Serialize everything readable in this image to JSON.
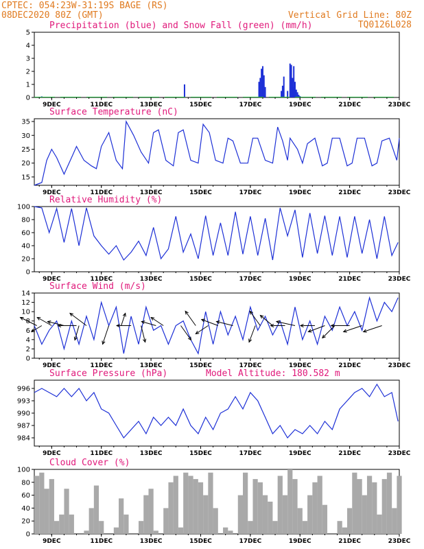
{
  "header": {
    "station": "CPTEC:   054:23W-31:19S   BAGE (RS)",
    "date": "08DEC2020 80Z (GMT)",
    "grid": "Vertical Grid Line: 80Z",
    "code": "TQ0126L028"
  },
  "colors": {
    "header": "#e07a1f",
    "title": "#e0187a",
    "line": "#1c2fd6",
    "precip": "#1c2fd6",
    "snow": "#1fae3a",
    "cloud": "#a9a9a9",
    "arrow": "#000000"
  },
  "chart_data": [
    {
      "type": "bar",
      "title": "Precipitation (blue) and Snow Fall (green) (mm/h)",
      "x_ticks": [
        "9DEC",
        "11DEC",
        "13DEC",
        "15DEC",
        "17DEC",
        "19DEC",
        "21DEC",
        "23DEC"
      ],
      "x_range_days": [
        8.3,
        23.0
      ],
      "ylim": [
        0,
        5
      ],
      "y_ticks": [
        0,
        1,
        2,
        3,
        4,
        5
      ],
      "series": [
        {
          "name": "Precipitation",
          "points": [
            [
              8.6,
              0.08
            ],
            [
              14.35,
              1.0
            ],
            [
              17.35,
              1.2
            ],
            [
              17.4,
              1.5
            ],
            [
              17.45,
              2.2
            ],
            [
              17.5,
              2.4
            ],
            [
              17.55,
              1.7
            ],
            [
              17.6,
              0.8
            ],
            [
              18.25,
              0.5
            ],
            [
              18.3,
              0.9
            ],
            [
              18.35,
              1.6
            ],
            [
              18.5,
              0.5
            ],
            [
              18.6,
              2.6
            ],
            [
              18.65,
              2.5
            ],
            [
              18.7,
              1.5
            ],
            [
              18.72,
              0.8
            ],
            [
              18.75,
              2.4
            ],
            [
              18.8,
              1.2
            ],
            [
              18.85,
              0.6
            ],
            [
              18.9,
              0.4
            ],
            [
              18.95,
              0.2
            ],
            [
              19.0,
              0.1
            ]
          ]
        },
        {
          "name": "Snow Fall",
          "points": [
            [
              10.0,
              0.03
            ],
            [
              12.0,
              0.03
            ],
            [
              14.0,
              0.03
            ],
            [
              16.0,
              0.05
            ],
            [
              20.0,
              0.03
            ],
            [
              22.0,
              0.04
            ]
          ]
        }
      ]
    },
    {
      "type": "line",
      "title": "Surface Temperature (nC)",
      "ylim": [
        12,
        36
      ],
      "y_ticks": [
        15,
        20,
        25,
        30,
        35
      ],
      "x_ticks": [
        "9DEC",
        "11DEC",
        "13DEC",
        "15DEC",
        "17DEC",
        "19DEC",
        "21DEC",
        "23DEC"
      ],
      "x": [
        8.3,
        8.6,
        8.8,
        9.0,
        9.2,
        9.5,
        9.8,
        10.0,
        10.3,
        10.6,
        10.8,
        11.0,
        11.3,
        11.6,
        11.85,
        12.0,
        12.3,
        12.6,
        12.9,
        13.1,
        13.3,
        13.6,
        13.9,
        14.1,
        14.3,
        14.6,
        14.9,
        15.1,
        15.35,
        15.6,
        15.9,
        16.1,
        16.3,
        16.6,
        16.9,
        17.1,
        17.3,
        17.6,
        17.9,
        18.1,
        18.3,
        18.5,
        18.6,
        18.9,
        19.1,
        19.3,
        19.6,
        19.9,
        20.1,
        20.3,
        20.6,
        20.9,
        21.1,
        21.3,
        21.6,
        21.9,
        22.1,
        22.3,
        22.6,
        22.9,
        23.0
      ],
      "values": [
        12,
        13,
        21,
        25,
        22,
        16,
        22,
        26,
        21,
        19,
        18,
        26,
        31,
        21,
        18,
        35,
        30,
        24,
        20,
        31,
        32,
        21,
        19,
        31,
        32,
        21,
        20,
        34,
        31,
        21,
        20,
        29,
        28,
        20,
        20,
        29,
        29,
        21,
        20,
        33,
        28,
        21,
        29,
        25,
        20,
        27,
        29,
        19,
        20,
        29,
        29,
        19,
        20,
        29,
        29,
        19,
        20,
        28,
        29,
        21,
        29
      ]
    },
    {
      "type": "line",
      "title": "Relative Humidity (%)",
      "ylim": [
        0,
        100
      ],
      "y_ticks": [
        0,
        20,
        40,
        60,
        80,
        100
      ],
      "x_ticks": [
        "9DEC",
        "11DEC",
        "13DEC",
        "15DEC",
        "17DEC",
        "19DEC",
        "21DEC",
        "23DEC"
      ],
      "x": [
        8.3,
        8.6,
        8.9,
        9.2,
        9.5,
        9.8,
        10.1,
        10.4,
        10.7,
        11.0,
        11.3,
        11.6,
        11.9,
        12.2,
        12.5,
        12.8,
        13.1,
        13.4,
        13.7,
        14.0,
        14.3,
        14.6,
        14.9,
        15.2,
        15.5,
        15.8,
        16.1,
        16.4,
        16.7,
        17.0,
        17.3,
        17.6,
        17.9,
        18.2,
        18.5,
        18.8,
        19.1,
        19.4,
        19.7,
        20.0,
        20.3,
        20.6,
        20.9,
        21.2,
        21.5,
        21.8,
        22.1,
        22.4,
        22.7,
        22.95
      ],
      "values": [
        100,
        98,
        60,
        97,
        45,
        97,
        40,
        98,
        55,
        40,
        27,
        40,
        18,
        30,
        47,
        25,
        68,
        20,
        35,
        85,
        30,
        58,
        20,
        86,
        25,
        75,
        25,
        92,
        27,
        85,
        25,
        82,
        18,
        98,
        55,
        95,
        22,
        90,
        28,
        86,
        25,
        85,
        22,
        85,
        28,
        80,
        20,
        85,
        25,
        45
      ]
    },
    {
      "type": "line",
      "title": "Surface Wind (m/s)",
      "ylim": [
        0,
        14
      ],
      "y_ticks": [
        0,
        2,
        4,
        6,
        8,
        10,
        12,
        14
      ],
      "x_ticks": [
        "9DEC",
        "11DEC",
        "13DEC",
        "15DEC",
        "17DEC",
        "19DEC",
        "21DEC",
        "23DEC"
      ],
      "x": [
        8.3,
        8.6,
        8.9,
        9.2,
        9.5,
        9.8,
        10.1,
        10.4,
        10.7,
        11.0,
        11.3,
        11.6,
        11.9,
        12.2,
        12.5,
        12.8,
        13.1,
        13.4,
        13.7,
        14.0,
        14.3,
        14.6,
        14.9,
        15.2,
        15.5,
        15.8,
        16.1,
        16.4,
        16.7,
        17.0,
        17.3,
        17.6,
        17.9,
        18.2,
        18.5,
        18.8,
        19.1,
        19.4,
        19.7,
        20.0,
        20.3,
        20.6,
        20.9,
        21.2,
        21.5,
        21.8,
        22.1,
        22.4,
        22.7,
        22.95
      ],
      "values": [
        7,
        3,
        6,
        8,
        2,
        8,
        3,
        9,
        4,
        12,
        7,
        11,
        1,
        9,
        3,
        11,
        6,
        7,
        3,
        7,
        8,
        4,
        1,
        10,
        3,
        10,
        5,
        9,
        4,
        11,
        6,
        9,
        5,
        8,
        3,
        11,
        4,
        8,
        3,
        9,
        6,
        11,
        7,
        10,
        6,
        13,
        8,
        12,
        10,
        13
      ]
    },
    {
      "type": "line",
      "title": "Surface Pressure (hPa)",
      "annotation": "Model Altitude: 180.582 m",
      "ylim": [
        982,
        998
      ],
      "y_ticks": [
        984,
        987,
        990,
        993,
        996
      ],
      "x_ticks": [
        "9DEC",
        "11DEC",
        "13DEC",
        "15DEC",
        "17DEC",
        "19DEC",
        "21DEC",
        "23DEC"
      ],
      "x": [
        8.3,
        8.6,
        8.9,
        9.2,
        9.5,
        9.8,
        10.1,
        10.4,
        10.7,
        11.0,
        11.3,
        11.6,
        11.9,
        12.2,
        12.5,
        12.8,
        13.1,
        13.4,
        13.7,
        14.0,
        14.3,
        14.6,
        14.9,
        15.2,
        15.5,
        15.8,
        16.1,
        16.4,
        16.7,
        17.0,
        17.3,
        17.6,
        17.9,
        18.2,
        18.5,
        18.8,
        19.1,
        19.4,
        19.7,
        20.0,
        20.3,
        20.6,
        20.9,
        21.2,
        21.5,
        21.8,
        22.1,
        22.4,
        22.7,
        22.95
      ],
      "values": [
        995,
        996,
        995,
        994,
        996,
        994,
        996,
        993,
        995,
        991,
        990,
        987,
        984,
        986,
        988,
        985,
        989,
        987,
        989,
        987,
        991,
        987,
        985,
        989,
        986,
        990,
        991,
        994,
        991,
        995,
        993,
        989,
        985,
        987,
        984,
        986,
        985,
        987,
        985,
        988,
        986,
        991,
        993,
        995,
        996,
        994,
        997,
        994,
        995,
        988
      ]
    },
    {
      "type": "area",
      "title": "Cloud Cover (%)",
      "ylim": [
        0,
        100
      ],
      "y_ticks": [
        0,
        20,
        40,
        60,
        80,
        100
      ],
      "x_ticks": [
        "9DEC",
        "11DEC",
        "13DEC",
        "15DEC",
        "17DEC",
        "19DEC",
        "21DEC",
        "23DEC"
      ],
      "x": [
        8.3,
        8.5,
        8.7,
        8.9,
        9.1,
        9.3,
        9.5,
        9.7,
        9.9,
        10.1,
        10.3,
        10.5,
        10.7,
        10.9,
        11.1,
        11.3,
        11.5,
        11.7,
        11.9,
        12.1,
        12.3,
        12.5,
        12.7,
        12.9,
        13.1,
        13.3,
        13.5,
        13.7,
        13.9,
        14.1,
        14.3,
        14.5,
        14.7,
        14.9,
        15.1,
        15.3,
        15.5,
        15.7,
        15.9,
        16.1,
        16.3,
        16.5,
        16.7,
        16.9,
        17.1,
        17.3,
        17.5,
        17.7,
        17.9,
        18.1,
        18.3,
        18.5,
        18.7,
        18.9,
        19.1,
        19.3,
        19.5,
        19.7,
        19.9,
        20.1,
        20.3,
        20.5,
        20.7,
        20.9,
        21.1,
        21.3,
        21.5,
        21.7,
        21.9,
        22.1,
        22.3,
        22.5,
        22.7,
        22.9
      ],
      "values": [
        90,
        95,
        70,
        85,
        20,
        30,
        70,
        30,
        0,
        0,
        5,
        40,
        75,
        20,
        0,
        0,
        10,
        55,
        30,
        0,
        0,
        20,
        60,
        70,
        5,
        0,
        40,
        80,
        90,
        10,
        95,
        90,
        85,
        80,
        60,
        95,
        40,
        0,
        10,
        5,
        0,
        60,
        95,
        20,
        85,
        80,
        60,
        50,
        20,
        90,
        60,
        100,
        85,
        40,
        20,
        60,
        80,
        90,
        45,
        0,
        0,
        20,
        10,
        40,
        95,
        85,
        60,
        90,
        80,
        30,
        85,
        95,
        40,
        90
      ]
    }
  ],
  "wind_barbs": [
    {
      "x": 8.4,
      "u": -0.8,
      "v": 0.4
    },
    {
      "x": 8.6,
      "u": -0.5,
      "v": -0.3
    },
    {
      "x": 9.0,
      "u": -0.7,
      "v": 0.4
    },
    {
      "x": 9.5,
      "u": -0.8,
      "v": 0.2
    },
    {
      "x": 10.0,
      "u": -0.9,
      "v": 0.0
    },
    {
      "x": 10.1,
      "u": -0.2,
      "v": -0.7
    },
    {
      "x": 10.4,
      "u": -0.8,
      "v": 0.6
    },
    {
      "x": 11.3,
      "u": -0.3,
      "v": -0.9
    },
    {
      "x": 11.8,
      "u": 0.2,
      "v": 0.6
    },
    {
      "x": 12.2,
      "u": -0.7,
      "v": 0.0
    },
    {
      "x": 12.6,
      "u": 0.2,
      "v": -0.8
    },
    {
      "x": 13.2,
      "u": -0.7,
      "v": 0.2
    },
    {
      "x": 13.5,
      "u": -0.6,
      "v": 0.4
    },
    {
      "x": 14.2,
      "u": 0.5,
      "v": -0.7
    },
    {
      "x": 14.8,
      "u": -0.5,
      "v": 0.7
    },
    {
      "x": 15.3,
      "u": -0.6,
      "v": -0.4
    },
    {
      "x": 15.7,
      "u": -0.8,
      "v": 0.3
    },
    {
      "x": 16.3,
      "u": -0.8,
      "v": 0.2
    },
    {
      "x": 17.2,
      "u": -0.3,
      "v": -0.8
    },
    {
      "x": 17.4,
      "u": -0.5,
      "v": 0.7
    },
    {
      "x": 17.9,
      "u": -0.6,
      "v": 0.5
    },
    {
      "x": 18.4,
      "u": -0.7,
      "v": 0.0
    },
    {
      "x": 18.8,
      "u": -0.9,
      "v": 0.2
    },
    {
      "x": 19.6,
      "u": -0.7,
      "v": 0.0
    },
    {
      "x": 20.0,
      "u": -0.8,
      "v": -0.3
    },
    {
      "x": 20.4,
      "u": -0.6,
      "v": -0.6
    },
    {
      "x": 21.0,
      "u": -0.9,
      "v": 0.0
    },
    {
      "x": 21.5,
      "u": -0.9,
      "v": -0.3
    },
    {
      "x": 22.3,
      "u": -0.9,
      "v": -0.3
    }
  ]
}
